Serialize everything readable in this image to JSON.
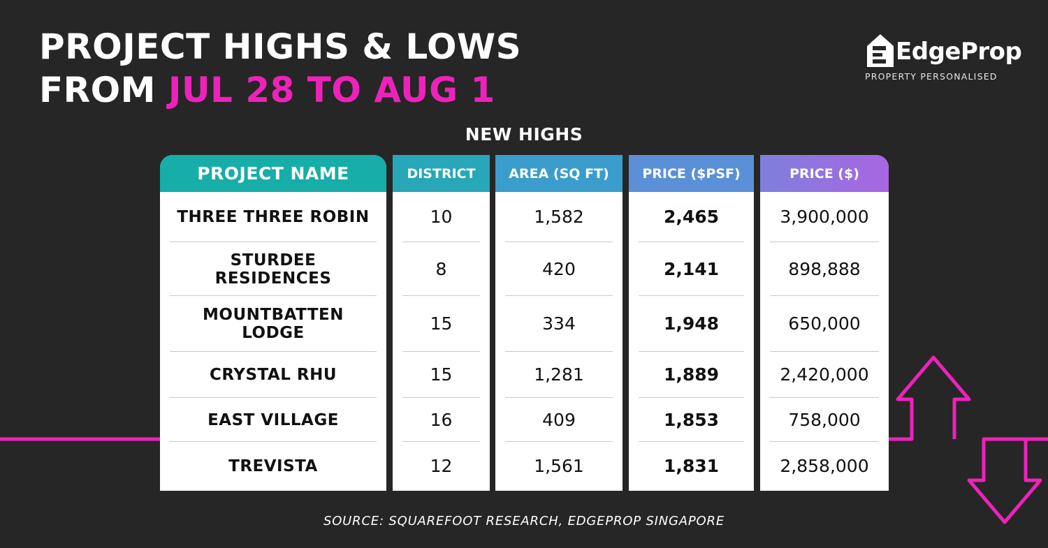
{
  "title": {
    "line1": "PROJECT HIGHS & LOWS",
    "line2_prefix": "FROM",
    "line2_highlight": "JUL 28 TO AUG 1"
  },
  "logo": {
    "wordmark": "EdgeProp",
    "tagline": "PROPERTY PERSONALISED"
  },
  "section_title": "NEW HIGHS",
  "table": {
    "headers": {
      "project": "PROJECT NAME",
      "district": "DISTRICT",
      "area": "AREA (SQ FT)",
      "psf": "PRICE ($PSF)",
      "price": "PRICE ($)"
    },
    "rows": [
      {
        "project": "THREE THREE ROBIN",
        "district": "10",
        "area": "1,582",
        "psf": "2,465",
        "price": "3,900,000"
      },
      {
        "project": "STURDEE RESIDENCES",
        "district": "8",
        "area": "420",
        "psf": "2,141",
        "price": "898,888"
      },
      {
        "project": "MOUNTBATTEN LODGE",
        "district": "15",
        "area": "334",
        "psf": "1,948",
        "price": "650,000"
      },
      {
        "project": "CRYSTAL RHU",
        "district": "15",
        "area": "1,281",
        "psf": "1,889",
        "price": "2,420,000"
      },
      {
        "project": "EAST VILLAGE",
        "district": "16",
        "area": "409",
        "psf": "1,853",
        "price": "758,000"
      },
      {
        "project": "TREVISTA",
        "district": "12",
        "area": "1,561",
        "psf": "1,831",
        "price": "2,858,000"
      }
    ]
  },
  "source": "SOURCE: SQUAREFOOT RESEARCH, EDGEPROP SINGAPORE",
  "colors": {
    "background": "#262626",
    "accent_pink": "#ee22bb",
    "header_teal": "#17b0a6",
    "header_blue": "#3f9bd6",
    "header_purple": "#a366e0"
  },
  "icons": [
    "edgeprop-house-icon",
    "up-arrow-icon",
    "down-arrow-icon"
  ]
}
